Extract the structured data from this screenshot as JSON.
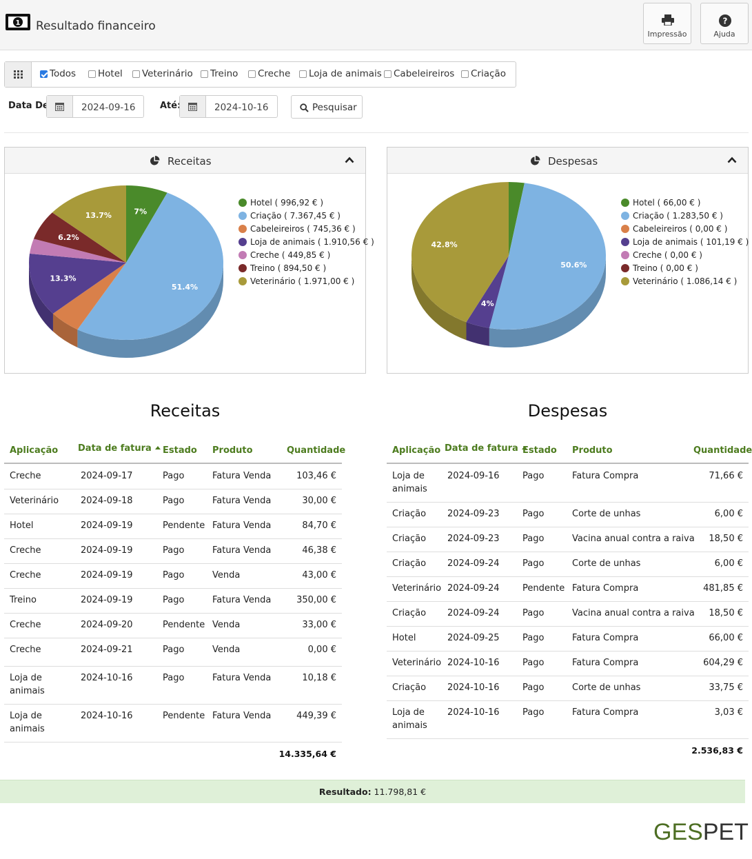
{
  "header": {
    "title": "Resultado financeiro",
    "print_label": "Impressão",
    "help_label": "Ajuda"
  },
  "filters": [
    {
      "label": "Todos",
      "checked": true
    },
    {
      "label": "Hotel",
      "checked": false
    },
    {
      "label": "Veterinário",
      "checked": false
    },
    {
      "label": "Treino",
      "checked": false
    },
    {
      "label": "Creche",
      "checked": false
    },
    {
      "label": "Loja de animais",
      "checked": false
    },
    {
      "label": "Cabeleireiros",
      "checked": false
    },
    {
      "label": "Criação",
      "checked": false
    }
  ],
  "dates": {
    "from_label": "Data De:",
    "from_value": "2024-09-16",
    "to_label": "Até:",
    "to_value": "2024-10-16",
    "search_label": "Pesquisar"
  },
  "colors": {
    "hotel": "#4a8a2a",
    "criacao": "#7eb3e2",
    "cabeleireiros": "#d9804a",
    "loja": "#553f8f",
    "creche": "#c27bb4",
    "treino": "#7a2a2a",
    "veterinario": "#a89a3a",
    "accent_green": "#4d7c1f",
    "result_bg": "#dff0d8"
  },
  "chart_data": [
    {
      "type": "pie",
      "title": "Receitas",
      "labels": [
        "Hotel",
        "Criação",
        "Cabeleireiros",
        "Loja de animais",
        "Creche",
        "Treino",
        "Veterinário"
      ],
      "values": [
        996.92,
        7367.45,
        745.36,
        1910.56,
        449.85,
        894.5,
        1971.0
      ],
      "legend": [
        "Hotel ( 996,92 € )",
        "Criação ( 7.367,45 € )",
        "Cabeleireiros ( 745,36 € )",
        "Loja de animais ( 1.910,56 € )",
        "Creche ( 449,85 € )",
        "Treino ( 894,50 € )",
        "Veterinário ( 1.971,00 € )"
      ],
      "slice_labels": [
        "7%",
        "51.4%",
        "",
        "13.3%",
        "",
        "6.2%",
        "13.7%"
      ],
      "legend_position": "right"
    },
    {
      "type": "pie",
      "title": "Despesas",
      "labels": [
        "Hotel",
        "Criação",
        "Cabeleireiros",
        "Loja de animais",
        "Creche",
        "Treino",
        "Veterinário"
      ],
      "values": [
        66.0,
        1283.5,
        0.0,
        101.19,
        0.0,
        0.0,
        1086.14
      ],
      "legend": [
        "Hotel ( 66,00 € )",
        "Criação ( 1.283,50 € )",
        "Cabeleireiros ( 0,00 € )",
        "Loja de animais ( 101,19 € )",
        "Creche ( 0,00 € )",
        "Treino ( 0,00 € )",
        "Veterinário ( 1.086,14 € )"
      ],
      "slice_labels": [
        "",
        "50.6%",
        "",
        "4%",
        "",
        "",
        "42.8%"
      ],
      "legend_position": "right"
    }
  ],
  "receitas": {
    "title": "Receitas",
    "columns": [
      "Aplicação",
      "Data de fatura",
      "Estado",
      "Produto",
      "Quantidade"
    ],
    "rows": [
      [
        "Creche",
        "2024-09-17",
        "Pago",
        "Fatura Venda",
        "103,46 €"
      ],
      [
        "Veterinário",
        "2024-09-18",
        "Pago",
        "Fatura Venda",
        "30,00 €"
      ],
      [
        "Hotel",
        "2024-09-19",
        "Pendente",
        "Fatura Venda",
        "84,70 €"
      ],
      [
        "Creche",
        "2024-09-19",
        "Pago",
        "Fatura Venda",
        "46,38 €"
      ],
      [
        "Creche",
        "2024-09-19",
        "Pago",
        "Venda",
        "43,00 €"
      ],
      [
        "Treino",
        "2024-09-19",
        "Pago",
        "Fatura Venda",
        "350,00 €"
      ],
      [
        "Creche",
        "2024-09-20",
        "Pendente",
        "Venda",
        "33,00 €"
      ],
      [
        "Creche",
        "2024-09-21",
        "Pago",
        "Venda",
        "0,00 €"
      ],
      [
        "Loja de animais",
        "2024-10-16",
        "Pago",
        "Fatura Venda",
        "10,18 €"
      ],
      [
        "Loja de animais",
        "2024-10-16",
        "Pendente",
        "Fatura Venda",
        "449,39 €"
      ]
    ],
    "total": "14.335,64 €"
  },
  "despesas": {
    "title": "Despesas",
    "columns": [
      "Aplicação",
      "Data de fatura",
      "Estado",
      "Produto",
      "Quantidade"
    ],
    "rows": [
      [
        "Loja de animais",
        "2024-09-16",
        "Pago",
        "Fatura Compra",
        "71,66 €"
      ],
      [
        "Criação",
        "2024-09-23",
        "Pago",
        "Corte de unhas",
        "6,00 €"
      ],
      [
        "Criação",
        "2024-09-23",
        "Pago",
        "Vacina anual contra a raiva",
        "18,50 €"
      ],
      [
        "Criação",
        "2024-09-24",
        "Pago",
        "Corte de unhas",
        "6,00 €"
      ],
      [
        "Veterinário",
        "2024-09-24",
        "Pendente",
        "Fatura Compra",
        "481,85 €"
      ],
      [
        "Criação",
        "2024-09-24",
        "Pago",
        "Vacina anual contra a raiva",
        "18,50 €"
      ],
      [
        "Hotel",
        "2024-09-25",
        "Pago",
        "Fatura Compra",
        "66,00 €"
      ],
      [
        "Veterinário",
        "2024-10-16",
        "Pago",
        "Fatura Compra",
        "604,29 €"
      ],
      [
        "Criação",
        "2024-10-16",
        "Pago",
        "Corte de unhas",
        "33,75 €"
      ],
      [
        "Loja de animais",
        "2024-10-16",
        "Pago",
        "Fatura Compra",
        "3,03 €"
      ]
    ],
    "total": "2.536,83 €"
  },
  "result": {
    "label": "Resultado:",
    "value": "11.798,81 €"
  },
  "brand": {
    "part1": "GES",
    "part2": "PET"
  }
}
